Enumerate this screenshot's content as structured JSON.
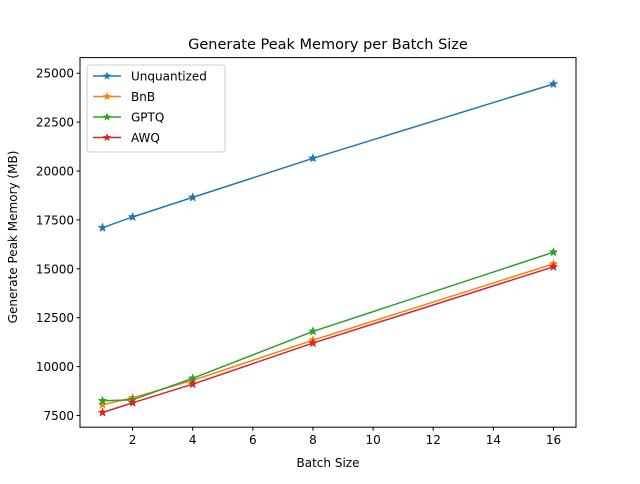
{
  "chart_data": {
    "type": "line",
    "title": "Generate Peak Memory per Batch Size",
    "xlabel": "Batch Size",
    "ylabel": "Generate Peak Memory (MB)",
    "x": [
      1,
      2,
      4,
      8,
      16
    ],
    "xlim": [
      0.25,
      16.75
    ],
    "ylim": [
      6900,
      25800
    ],
    "xticks": [
      2,
      4,
      6,
      8,
      10,
      12,
      14,
      16
    ],
    "yticks": [
      7500,
      10000,
      12500,
      15000,
      17500,
      20000,
      22500,
      25000
    ],
    "grid": false,
    "legend_position": "upper-left",
    "marker": "star",
    "series": [
      {
        "name": "Unquantized",
        "color": "#1f77b4",
        "values": [
          17100,
          17650,
          18650,
          20650,
          24450
        ]
      },
      {
        "name": "BnB",
        "color": "#ff7f0e",
        "values": [
          8050,
          8400,
          9300,
          11350,
          15250
        ]
      },
      {
        "name": "GPTQ",
        "color": "#2ca02c",
        "values": [
          8250,
          8300,
          9400,
          11800,
          15850
        ]
      },
      {
        "name": "AWQ",
        "color": "#d62728",
        "values": [
          7650,
          8150,
          9100,
          11200,
          15100
        ]
      }
    ]
  }
}
